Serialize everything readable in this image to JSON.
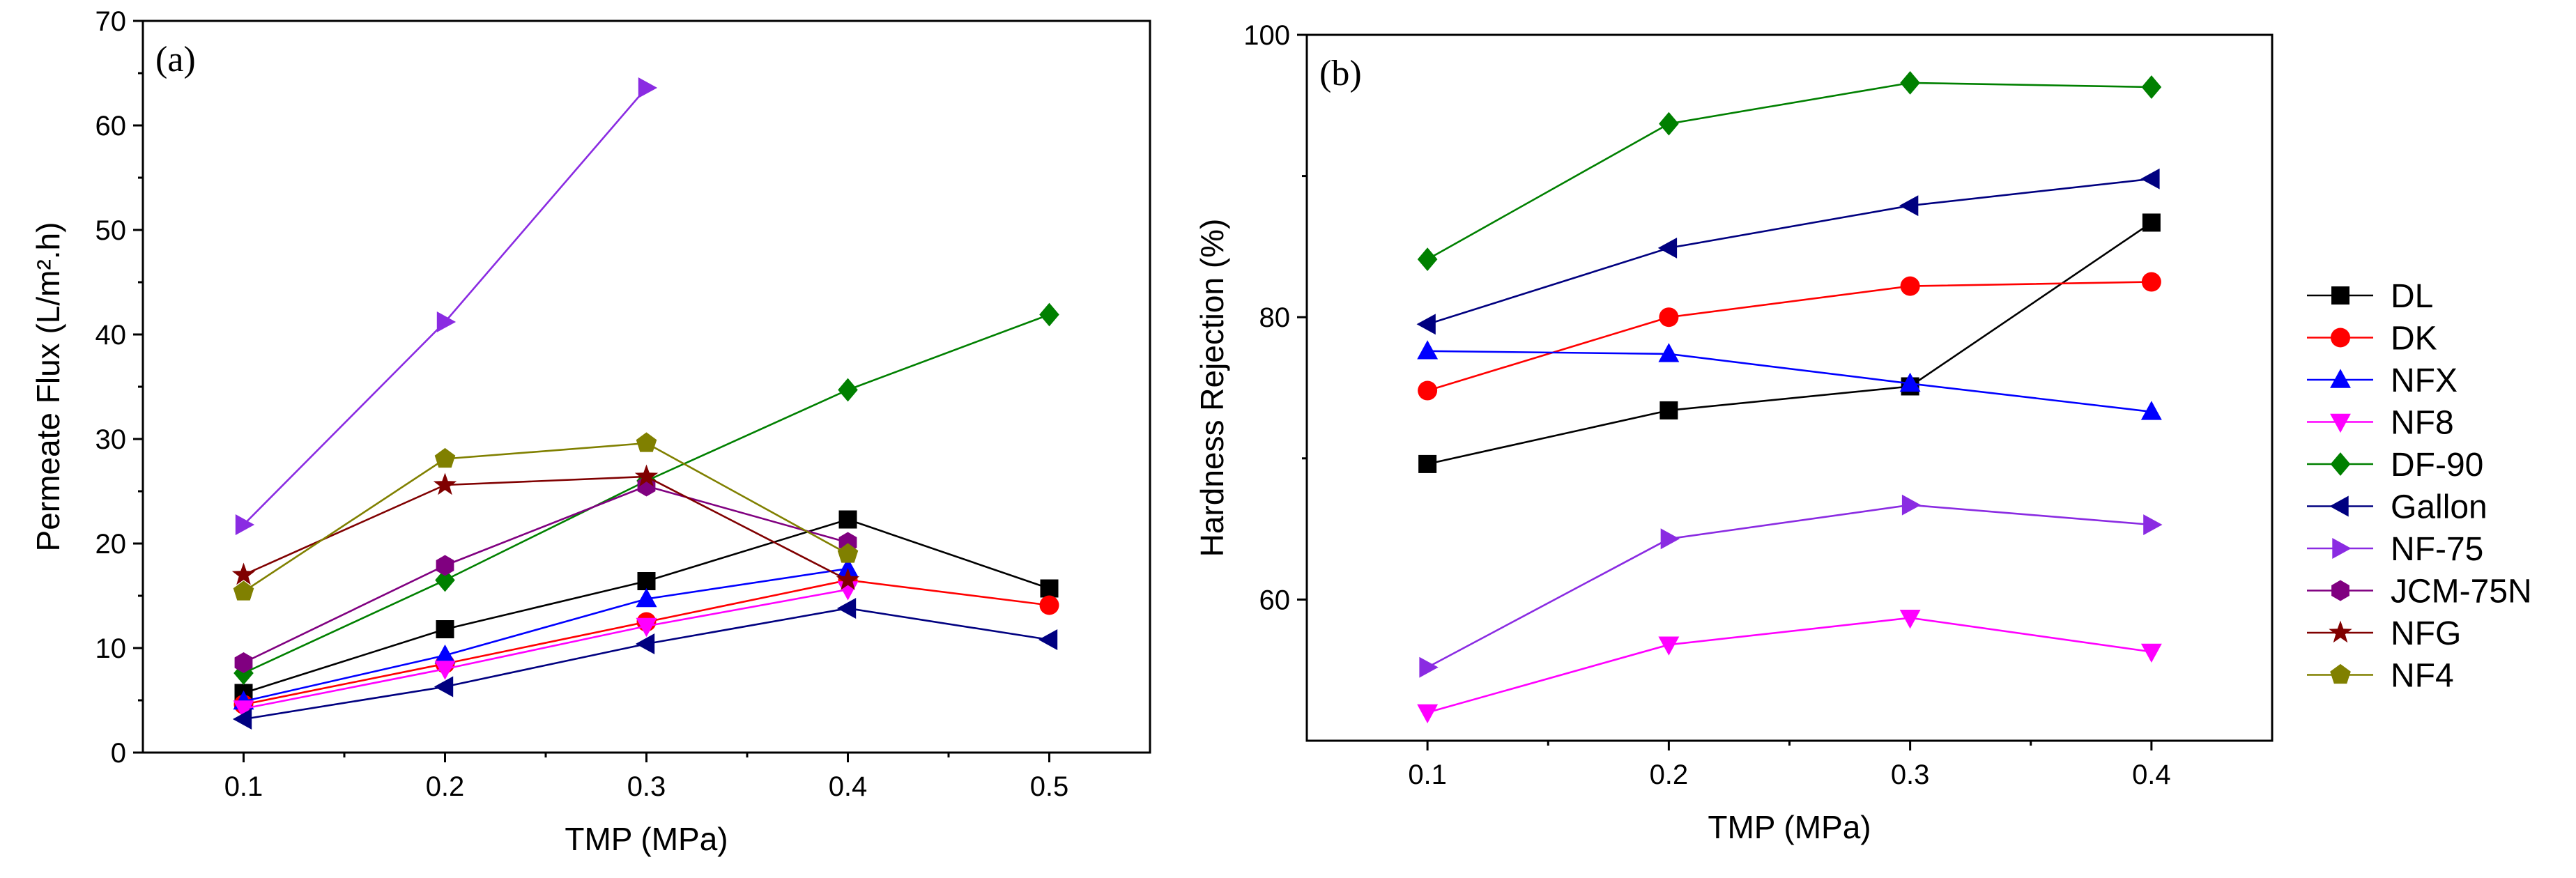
{
  "chart_data": [
    {
      "type": "line",
      "panel_label": "(a)",
      "xlabel": "TMP (MPa)",
      "ylabel": "Permeate Flux (L/m².h)",
      "xlim": [
        0.05,
        0.55
      ],
      "ylim": [
        0,
        70
      ],
      "xticks": [
        0.1,
        0.2,
        0.3,
        0.4,
        0.5
      ],
      "yticks": [
        0,
        10,
        20,
        30,
        40,
        50,
        60,
        70
      ],
      "series": [
        {
          "name": "DL",
          "color": "#000000",
          "marker": "square",
          "x": [
            0.1,
            0.2,
            0.3,
            0.4,
            0.5
          ],
          "y": [
            5.7,
            11.8,
            16.4,
            22.3,
            15.7
          ]
        },
        {
          "name": "DK",
          "color": "#ff0000",
          "marker": "circle",
          "x": [
            0.1,
            0.2,
            0.3,
            0.4,
            0.5
          ],
          "y": [
            4.6,
            8.5,
            12.5,
            16.5,
            14.1
          ]
        },
        {
          "name": "NFX",
          "color": "#0000ff",
          "marker": "triangle-up",
          "x": [
            0.1,
            0.2,
            0.3,
            0.4
          ],
          "y": [
            4.9,
            9.3,
            14.7,
            17.6
          ]
        },
        {
          "name": "NF8",
          "color": "#ff00ff",
          "marker": "triangle-down",
          "x": [
            0.1,
            0.2,
            0.3,
            0.4
          ],
          "y": [
            4.2,
            8.0,
            12.1,
            15.6
          ]
        },
        {
          "name": "DF-90",
          "color": "#008000",
          "marker": "diamond",
          "x": [
            0.1,
            0.2,
            0.3,
            0.4,
            0.5
          ],
          "y": [
            7.6,
            16.5,
            26.0,
            34.7,
            41.9
          ]
        },
        {
          "name": "Gallon",
          "color": "#000080",
          "marker": "triangle-left",
          "x": [
            0.1,
            0.2,
            0.3,
            0.4,
            0.5
          ],
          "y": [
            3.2,
            6.3,
            10.4,
            13.8,
            10.8
          ]
        },
        {
          "name": "NF-75",
          "color": "#8a2be2",
          "marker": "triangle-right",
          "x": [
            0.1,
            0.2,
            0.3
          ],
          "y": [
            21.8,
            41.2,
            63.6
          ]
        },
        {
          "name": "JCM-75N",
          "color": "#800080",
          "marker": "hexagon",
          "x": [
            0.1,
            0.2,
            0.3,
            0.4
          ],
          "y": [
            8.6,
            17.9,
            25.5,
            20.1
          ]
        },
        {
          "name": "NFG",
          "color": "#800000",
          "marker": "star",
          "x": [
            0.1,
            0.2,
            0.3,
            0.4
          ],
          "y": [
            17.0,
            25.6,
            26.4,
            16.5
          ]
        },
        {
          "name": "NF4",
          "color": "#808000",
          "marker": "pentagon",
          "x": [
            0.1,
            0.2,
            0.3,
            0.4
          ],
          "y": [
            15.4,
            28.1,
            29.6,
            19.0
          ]
        }
      ]
    },
    {
      "type": "line",
      "panel_label": "(b)",
      "xlabel": "TMP (MPa)",
      "ylabel": "Hardness Rejection  (%)",
      "xlim": [
        0.05,
        0.45
      ],
      "ylim": [
        50,
        100
      ],
      "xticks": [
        0.1,
        0.2,
        0.3,
        0.4
      ],
      "yticks": [
        60,
        80,
        100
      ],
      "series": [
        {
          "name": "DL",
          "color": "#000000",
          "marker": "square",
          "x": [
            0.1,
            0.2,
            0.3,
            0.4
          ],
          "y": [
            69.6,
            73.4,
            75.1,
            86.7
          ]
        },
        {
          "name": "DK",
          "color": "#ff0000",
          "marker": "circle",
          "x": [
            0.1,
            0.2,
            0.3,
            0.4
          ],
          "y": [
            74.8,
            80.0,
            82.2,
            82.5
          ]
        },
        {
          "name": "NFX",
          "color": "#0000ff",
          "marker": "triangle-up",
          "x": [
            0.1,
            0.2,
            0.3,
            0.4
          ],
          "y": [
            77.6,
            77.4,
            75.3,
            73.3
          ]
        },
        {
          "name": "NF8",
          "color": "#ff00ff",
          "marker": "triangle-down",
          "x": [
            0.1,
            0.2,
            0.3,
            0.4
          ],
          "y": [
            52.0,
            56.8,
            58.7,
            56.3
          ]
        },
        {
          "name": "DF-90",
          "color": "#008000",
          "marker": "diamond",
          "x": [
            0.1,
            0.2,
            0.3,
            0.4
          ],
          "y": [
            84.1,
            93.7,
            96.6,
            96.3
          ]
        },
        {
          "name": "Gallon",
          "color": "#000080",
          "marker": "triangle-left",
          "x": [
            0.1,
            0.2,
            0.3,
            0.4
          ],
          "y": [
            79.5,
            84.9,
            87.9,
            89.8
          ]
        },
        {
          "name": "NF-75",
          "color": "#8a2be2",
          "marker": "triangle-right",
          "x": [
            0.1,
            0.2,
            0.3,
            0.4
          ],
          "y": [
            55.2,
            64.3,
            66.7,
            65.3
          ]
        }
      ]
    }
  ],
  "legend": {
    "entries": [
      "DL",
      "DK",
      "NFX",
      "NF8",
      "DF-90",
      "Gallon",
      "NF-75",
      "JCM-75N",
      "NFG",
      "NF4"
    ]
  }
}
